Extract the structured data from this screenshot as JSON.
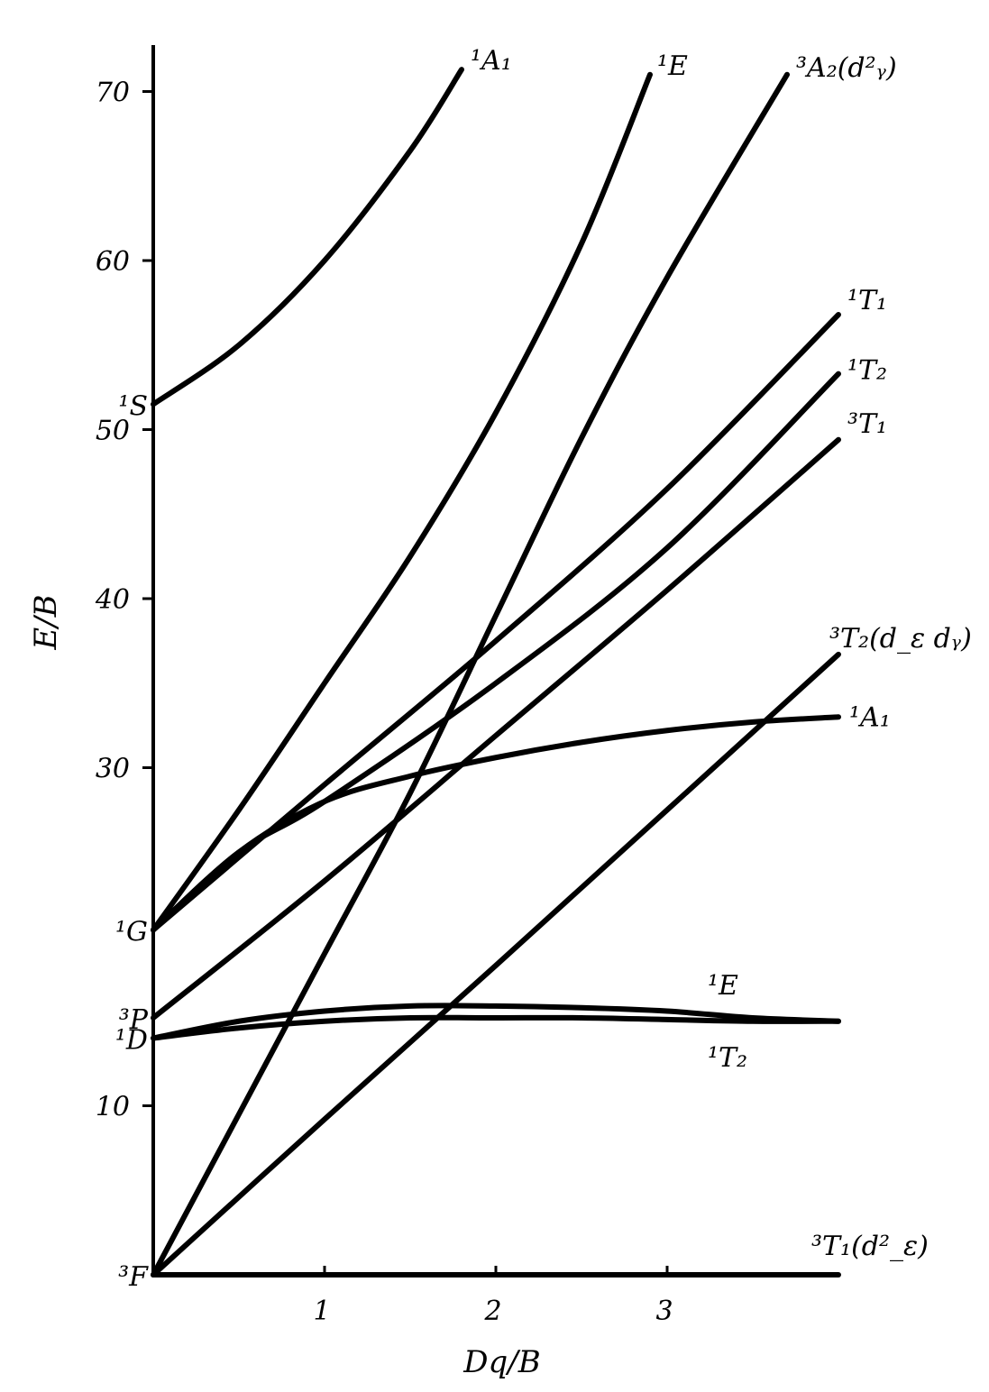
{
  "chart_data": {
    "type": "line",
    "xlabel": "Dq/B",
    "ylabel": "E/B",
    "xlim": [
      0,
      4
    ],
    "ylim": [
      0,
      72
    ],
    "x_ticks": [
      {
        "value": 1,
        "label": "1"
      },
      {
        "value": 2,
        "label": "2"
      },
      {
        "value": 3,
        "label": "3"
      }
    ],
    "y_ticks": [
      {
        "value": 10,
        "label": "10"
      },
      {
        "value": 30,
        "label": "30"
      },
      {
        "value": 40,
        "label": "40"
      },
      {
        "value": 50,
        "label": "50"
      },
      {
        "value": 60,
        "label": "60"
      },
      {
        "value": 70,
        "label": "70"
      }
    ],
    "free_ion_terms": [
      {
        "label": "³F",
        "y": 0
      },
      {
        "label": "¹D",
        "y": 14
      },
      {
        "label": "³P",
        "y": 15.2
      },
      {
        "label": "¹G",
        "y": 20.4
      },
      {
        "label": "¹S",
        "y": 51.5
      }
    ],
    "series": [
      {
        "name": "¹A₁",
        "x": [
          0,
          0.5,
          1.0,
          1.5,
          1.8
        ],
        "y": [
          51.5,
          55.0,
          60.0,
          66.5,
          71.3
        ]
      },
      {
        "name": "¹E",
        "x": [
          0,
          0.5,
          1.0,
          1.5,
          2.0,
          2.5,
          2.9
        ],
        "y": [
          20.4,
          27.5,
          35.0,
          42.5,
          51.0,
          61.0,
          71.0
        ]
      },
      {
        "name": "³A₂(d²ᵧ)",
        "x": [
          0,
          0.5,
          1.0,
          1.5,
          2.0,
          2.5,
          3.0,
          3.7
        ],
        "y": [
          0,
          9.5,
          19.0,
          28.5,
          39.0,
          49.5,
          59.0,
          71.0
        ]
      },
      {
        "name": "¹T₁",
        "x": [
          0,
          1.0,
          2.0,
          3.0,
          4.0
        ],
        "y": [
          20.4,
          29.0,
          37.5,
          46.5,
          56.8
        ]
      },
      {
        "name": "¹T₂",
        "x": [
          0,
          0.5,
          1.0,
          2.0,
          3.0,
          4.0
        ],
        "y": [
          20.4,
          25.0,
          28.0,
          35.0,
          43.0,
          53.3
        ]
      },
      {
        "name": "³T₁",
        "x": [
          0,
          1.0,
          2.0,
          3.0,
          4.0
        ],
        "y": [
          15.2,
          23.3,
          31.9,
          40.5,
          49.4
        ]
      },
      {
        "name": "³T₂(d_ε dᵧ)",
        "x": [
          0,
          1.0,
          2.0,
          3.0,
          4.0
        ],
        "y": [
          0,
          9.2,
          18.3,
          27.5,
          36.7
        ]
      },
      {
        "name": "¹A₁",
        "x": [
          0,
          0.5,
          1.0,
          1.5,
          2.0,
          2.5,
          3.0,
          3.5,
          4.0
        ],
        "y": [
          20.4,
          25.0,
          28.0,
          29.5,
          30.6,
          31.5,
          32.2,
          32.7,
          33.0
        ]
      },
      {
        "name": "¹E",
        "x": [
          0,
          0.5,
          1.0,
          1.5,
          2.0,
          2.5,
          3.0,
          3.5,
          4.0
        ],
        "y": [
          14.0,
          15.0,
          15.6,
          15.9,
          15.9,
          15.8,
          15.6,
          15.2,
          15.0
        ]
      },
      {
        "name": "¹T₂",
        "x": [
          0,
          0.5,
          1.0,
          1.5,
          2.0,
          2.5,
          3.0,
          3.5,
          4.0
        ],
        "y": [
          14.0,
          14.6,
          15.0,
          15.2,
          15.2,
          15.2,
          15.1,
          15.0,
          15.0
        ]
      },
      {
        "name": "³T₁(d²_ε)",
        "x": [
          0,
          4.0
        ],
        "y": [
          0,
          0
        ]
      }
    ]
  }
}
